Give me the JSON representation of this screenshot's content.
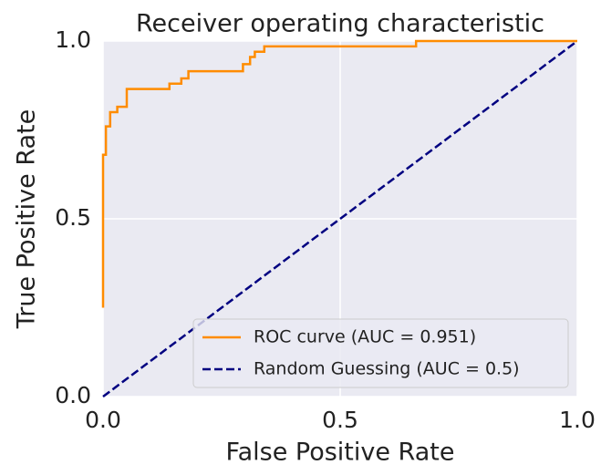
{
  "chart_data": {
    "type": "line",
    "title": "Receiver operating characteristic",
    "x_label": "False Positive Rate",
    "y_label": "True Positive Rate",
    "xlim": [
      0,
      1
    ],
    "ylim": [
      0,
      1
    ],
    "xticks": [
      {
        "value": 0,
        "label": "0.0"
      },
      0.5,
      {
        "value": 1,
        "label": "1.0"
      }
    ],
    "yticks": [
      {
        "value": 0,
        "label": "0.0"
      },
      0.5,
      {
        "value": 1,
        "label": "1.0"
      }
    ],
    "grid": true,
    "legend": "lower right",
    "series": [
      {
        "name": "ROC curve (AUC = 0.951)",
        "color": "#ff8c00",
        "dash": "solid",
        "x": [
          0,
          0,
          0.006,
          0.006,
          0.015,
          0.015,
          0.03,
          0.03,
          0.05,
          0.05,
          0.14,
          0.14,
          0.165,
          0.165,
          0.18,
          0.18,
          0.295,
          0.295,
          0.31,
          0.31,
          0.32,
          0.32,
          0.34,
          0.34,
          0.66,
          0.66,
          1.0
        ],
        "values": [
          0.25,
          0.68,
          0.68,
          0.76,
          0.76,
          0.8,
          0.8,
          0.815,
          0.815,
          0.865,
          0.865,
          0.88,
          0.88,
          0.895,
          0.895,
          0.915,
          0.915,
          0.935,
          0.935,
          0.955,
          0.955,
          0.97,
          0.97,
          0.985,
          0.985,
          1.0,
          1.0
        ]
      },
      {
        "name": "Random Guessing (AUC = 0.5)",
        "color": "#000080",
        "dash": "dashed",
        "x": [
          0,
          1
        ],
        "values": [
          0,
          1
        ]
      }
    ]
  }
}
